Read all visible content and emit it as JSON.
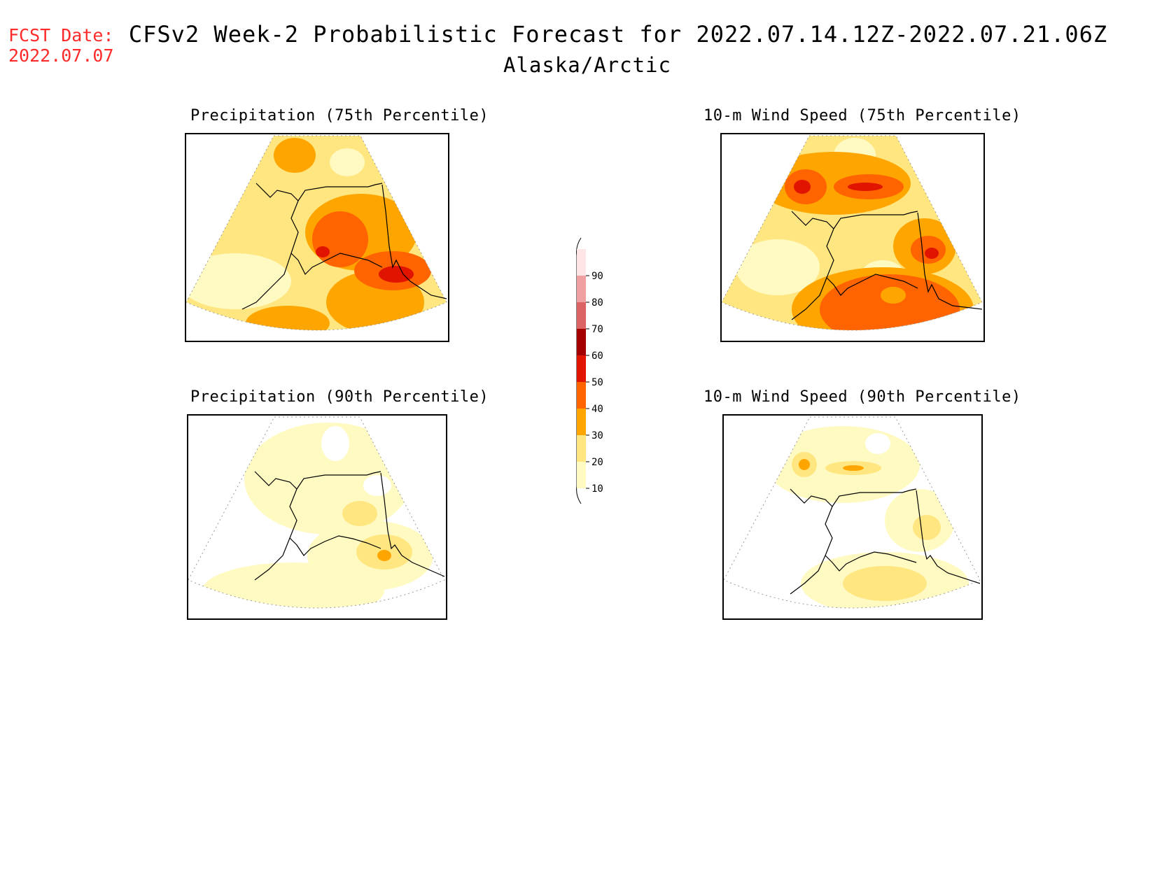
{
  "header": {
    "fcst_label": "FCST Date:",
    "fcst_date": "2022.07.07",
    "title": "CFSv2 Week-2 Probabilistic Forecast for 2022.07.14.12Z-2022.07.21.06Z",
    "subtitle": "Alaska/Arctic"
  },
  "panels": [
    {
      "title": "Precipitation (75th Percentile)",
      "intensity": "high",
      "hotspot": "southeast coast",
      "level_max": 60
    },
    {
      "title": "10-m Wind Speed (75th Percentile)",
      "intensity": "high",
      "hotspot": "north coast and gulf",
      "level_max": 60
    },
    {
      "title": "Precipitation (90th Percentile)",
      "intensity": "low",
      "hotspot": "southeast coast",
      "level_max": 40
    },
    {
      "title": "10-m Wind Speed (90th Percentile)",
      "intensity": "low",
      "hotspot": "north coast",
      "level_max": 40
    }
  ],
  "legend": {
    "ticks": [
      "10",
      "20",
      "30",
      "40",
      "50",
      "60",
      "70",
      "80",
      "90"
    ],
    "colors": [
      "#fffac2",
      "#ffe680",
      "#ffa500",
      "#ff6400",
      "#e11400",
      "#a50000",
      "#dc6464",
      "#f0a0a0",
      "#ffe6e6"
    ]
  },
  "map_colors": {
    "c10": "#fffac2",
    "c20": "#ffe680",
    "c30": "#ffa500",
    "c40": "#ff6400",
    "c50": "#e11400",
    "c60": "#a50000"
  }
}
